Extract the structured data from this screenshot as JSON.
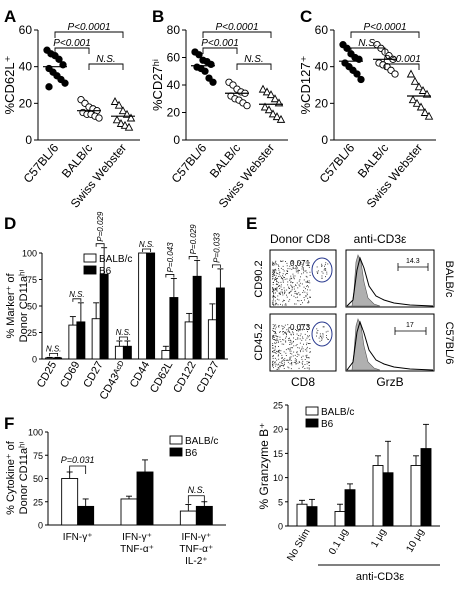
{
  "chart_data": [
    {
      "panel": "A",
      "type": "scatter",
      "ylabel": "%CD62L⁺",
      "ylim": [
        0,
        60
      ],
      "yticks": [
        "0",
        "20",
        "40",
        "60"
      ],
      "categories": [
        "C57BL/6",
        "BALB/c",
        "Swiss Webster"
      ],
      "markers": [
        "filled-circle",
        "open-circle",
        "open-triangle"
      ],
      "series": [
        {
          "values": [
            49,
            47,
            46,
            44,
            41,
            39,
            37,
            35,
            33,
            31,
            29
          ],
          "mean": 40
        },
        {
          "values": [
            22,
            20,
            18,
            17,
            16,
            15,
            14,
            14,
            13,
            12
          ],
          "mean": 16
        },
        {
          "values": [
            21,
            19,
            16,
            14,
            12,
            11,
            9,
            8,
            7
          ],
          "mean": 13
        }
      ],
      "comparisons": [
        {
          "pair": [
            0,
            1
          ],
          "label": "P<0.001"
        },
        {
          "pair": [
            1,
            2
          ],
          "label": "N.S."
        },
        {
          "pair": [
            0,
            2
          ],
          "label": "P<0.0001"
        }
      ]
    },
    {
      "panel": "B",
      "type": "scatter",
      "ylabel": "%CD27ʰⁱ",
      "ylim": [
        0,
        80
      ],
      "yticks": [
        "0",
        "20",
        "40",
        "60",
        "80"
      ],
      "categories": [
        "C57BL/6",
        "BALB/c",
        "Swiss Webster"
      ],
      "markers": [
        "filled-circle",
        "open-circle",
        "open-triangle"
      ],
      "series": [
        {
          "values": [
            64,
            62,
            58,
            57,
            55,
            53,
            52,
            50,
            45,
            42
          ],
          "mean": 54
        },
        {
          "values": [
            42,
            40,
            37,
            35,
            34,
            32,
            30,
            29,
            27,
            25
          ],
          "mean": 34
        },
        {
          "values": [
            37,
            35,
            33,
            30,
            27,
            24,
            22,
            19,
            17,
            15
          ],
          "mean": 26
        }
      ],
      "comparisons": [
        {
          "pair": [
            0,
            1
          ],
          "label": "P<0.001"
        },
        {
          "pair": [
            1,
            2
          ],
          "label": "N.S."
        },
        {
          "pair": [
            0,
            2
          ],
          "label": "P<0.0001"
        }
      ]
    },
    {
      "panel": "C",
      "type": "scatter",
      "ylabel": "%CD127⁺",
      "ylim": [
        0,
        60
      ],
      "yticks": [
        "0",
        "20",
        "40",
        "60"
      ],
      "categories": [
        "C57BL/6",
        "BALB/c",
        "Swiss Webster"
      ],
      "markers": [
        "filled-circle",
        "open-circle",
        "open-triangle"
      ],
      "series": [
        {
          "values": [
            52,
            50,
            47,
            45,
            44,
            42,
            40,
            38,
            36,
            33
          ],
          "mean": 43
        },
        {
          "values": [
            52,
            50,
            48,
            46,
            44,
            42,
            41,
            40,
            38,
            36
          ],
          "mean": 44
        },
        {
          "values": [
            36,
            32,
            29,
            27,
            25,
            22,
            20,
            18,
            15,
            13
          ],
          "mean": 24
        }
      ],
      "comparisons": [
        {
          "pair": [
            0,
            1
          ],
          "label": "N.S."
        },
        {
          "pair": [
            1,
            2
          ],
          "label": "P<0.001"
        },
        {
          "pair": [
            0,
            2
          ],
          "label": "P<0.0001"
        }
      ]
    },
    {
      "panel": "D",
      "type": "bar",
      "ylabel_lines": [
        "% Marker⁺ of",
        "Donor CD11aʰⁱ"
      ],
      "ylim": [
        0,
        100
      ],
      "yticks": [
        "0",
        "25",
        "50",
        "75",
        "100"
      ],
      "categories": [
        "CD25",
        "CD69",
        "CD27",
        "CD43ᴬᶜᴰ",
        "CD44",
        "CD62L",
        "CD122",
        "CD127"
      ],
      "series": [
        {
          "name": "BALB/c",
          "color": "#ffffff",
          "values": [
            1,
            32,
            38,
            12,
            100,
            8,
            35,
            37
          ],
          "errors": [
            0.5,
            8,
            15,
            5,
            0,
            4,
            8,
            15
          ]
        },
        {
          "name": "B6",
          "color": "#000000",
          "values": [
            1,
            35,
            80,
            12,
            100,
            58,
            78,
            67
          ],
          "errors": [
            0.5,
            18,
            25,
            5,
            0,
            18,
            15,
            18
          ]
        }
      ],
      "annotations": [
        "N.S.",
        "N.S.",
        "P=0.029",
        "N.S.",
        "N.S.",
        "P=0.043",
        "P=0.029",
        "P=0.033"
      ]
    },
    {
      "panel": "E-bar",
      "type": "bar",
      "ylabel": "% Granzyme B⁺",
      "ylim": [
        0,
        25
      ],
      "yticks": [
        "0",
        "5",
        "10",
        "15",
        "20",
        "25"
      ],
      "categories": [
        "No Stim",
        "0.1 μg",
        "1 μg",
        "10 μg"
      ],
      "xgroup_label": "anti-CD3ε",
      "series": [
        {
          "name": "BALB/c",
          "color": "#ffffff",
          "values": [
            4.5,
            3,
            12.5,
            12.5
          ],
          "errors": [
            0.8,
            1.5,
            2,
            2
          ]
        },
        {
          "name": "B6",
          "color": "#000000",
          "values": [
            4,
            7.5,
            11,
            16
          ],
          "errors": [
            1.5,
            1.2,
            6.5,
            5
          ]
        }
      ]
    },
    {
      "panel": "F",
      "type": "bar",
      "ylabel_lines": [
        "% Cytokine⁺ of",
        "Donor CD11aʰⁱ"
      ],
      "ylim": [
        0,
        100
      ],
      "yticks": [
        "0",
        "25",
        "50",
        "75",
        "100"
      ],
      "category_lines": [
        [
          "IFN-γ⁺"
        ],
        [
          "IFN-γ⁺",
          "TNF-α⁺"
        ],
        [
          "IFN-γ⁺",
          "TNF-α⁺",
          "IL-2⁺"
        ]
      ],
      "series": [
        {
          "name": "BALB/c",
          "color": "#ffffff",
          "values": [
            50,
            28,
            15
          ],
          "errors": [
            7,
            3,
            7
          ]
        },
        {
          "name": "B6",
          "color": "#000000",
          "values": [
            20,
            57,
            20
          ],
          "errors": [
            8,
            13,
            5
          ]
        }
      ],
      "annotations": [
        "P=0.031",
        "",
        "N.S."
      ]
    }
  ],
  "panel_letters": [
    "A",
    "B",
    "C",
    "D",
    "E",
    "F"
  ],
  "flow": {
    "col_titles": [
      "Donor CD8",
      "anti-CD3ε"
    ],
    "row_labels": [
      "CD90.2",
      "CD45.2"
    ],
    "strain_labels": [
      "BALB/c",
      "C57BL/6"
    ],
    "gate_values": [
      "0.071",
      "0.073"
    ],
    "hist_values": [
      "14.3",
      "17"
    ],
    "x_labels": [
      "CD8",
      "GrzB"
    ]
  }
}
